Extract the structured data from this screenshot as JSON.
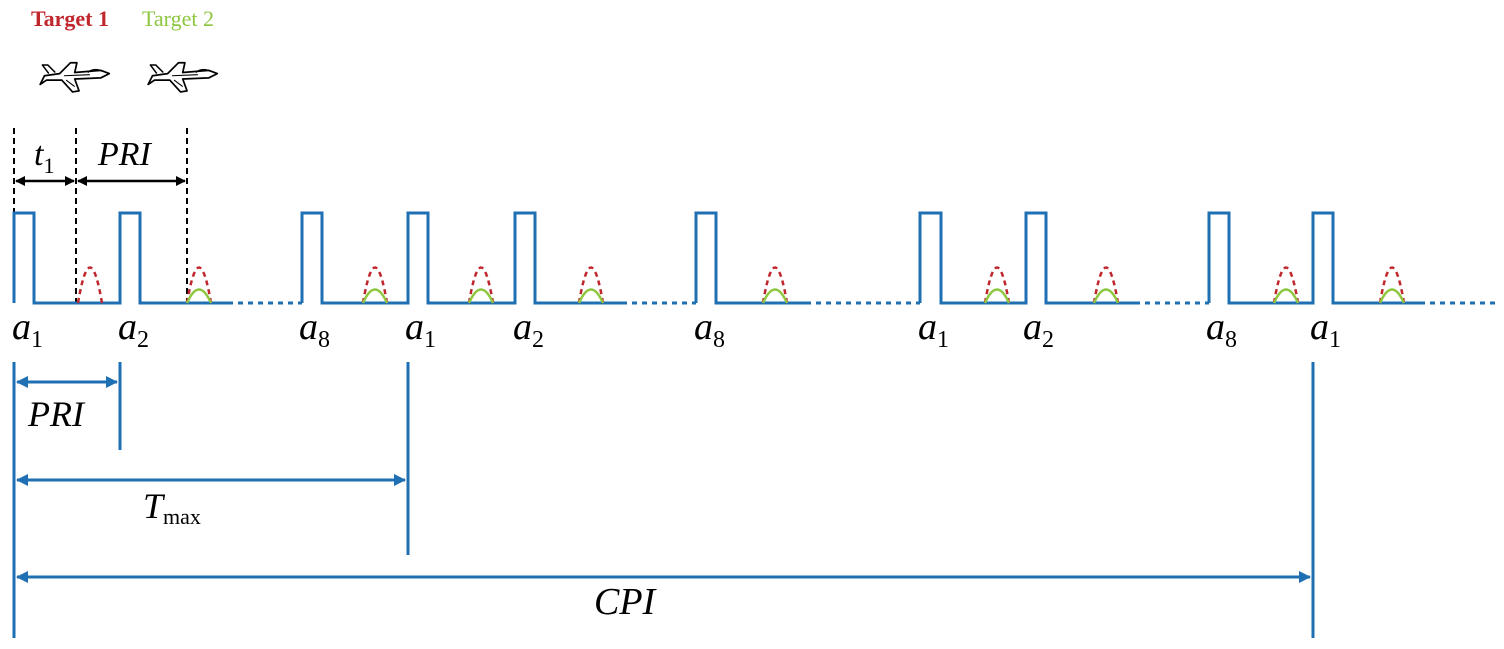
{
  "legend": {
    "target1": "Target 1",
    "target2": "Target 2",
    "target1_color": "#c0272d",
    "target2_color": "#8dc63f"
  },
  "icons": [
    "jet-aircraft-icon",
    "jet-aircraft-icon"
  ],
  "pulse_color": "#1f6fb3",
  "top_annotations": {
    "t_main": "t",
    "t_sub": "1",
    "pri": "PRI"
  },
  "pulse_labels": [
    {
      "base": "a",
      "sub": "1"
    },
    {
      "base": "a",
      "sub": "2"
    },
    {
      "base": "a",
      "sub": "8"
    },
    {
      "base": "a",
      "sub": "1"
    },
    {
      "base": "a",
      "sub": "2"
    },
    {
      "base": "a",
      "sub": "8"
    },
    {
      "base": "a",
      "sub": "1"
    },
    {
      "base": "a",
      "sub": "2"
    },
    {
      "base": "a",
      "sub": "8"
    },
    {
      "base": "a",
      "sub": "1"
    }
  ],
  "intervals": {
    "pri": "PRI",
    "tmax_main": "T",
    "tmax_sub": "max",
    "cpi": "CPI"
  }
}
